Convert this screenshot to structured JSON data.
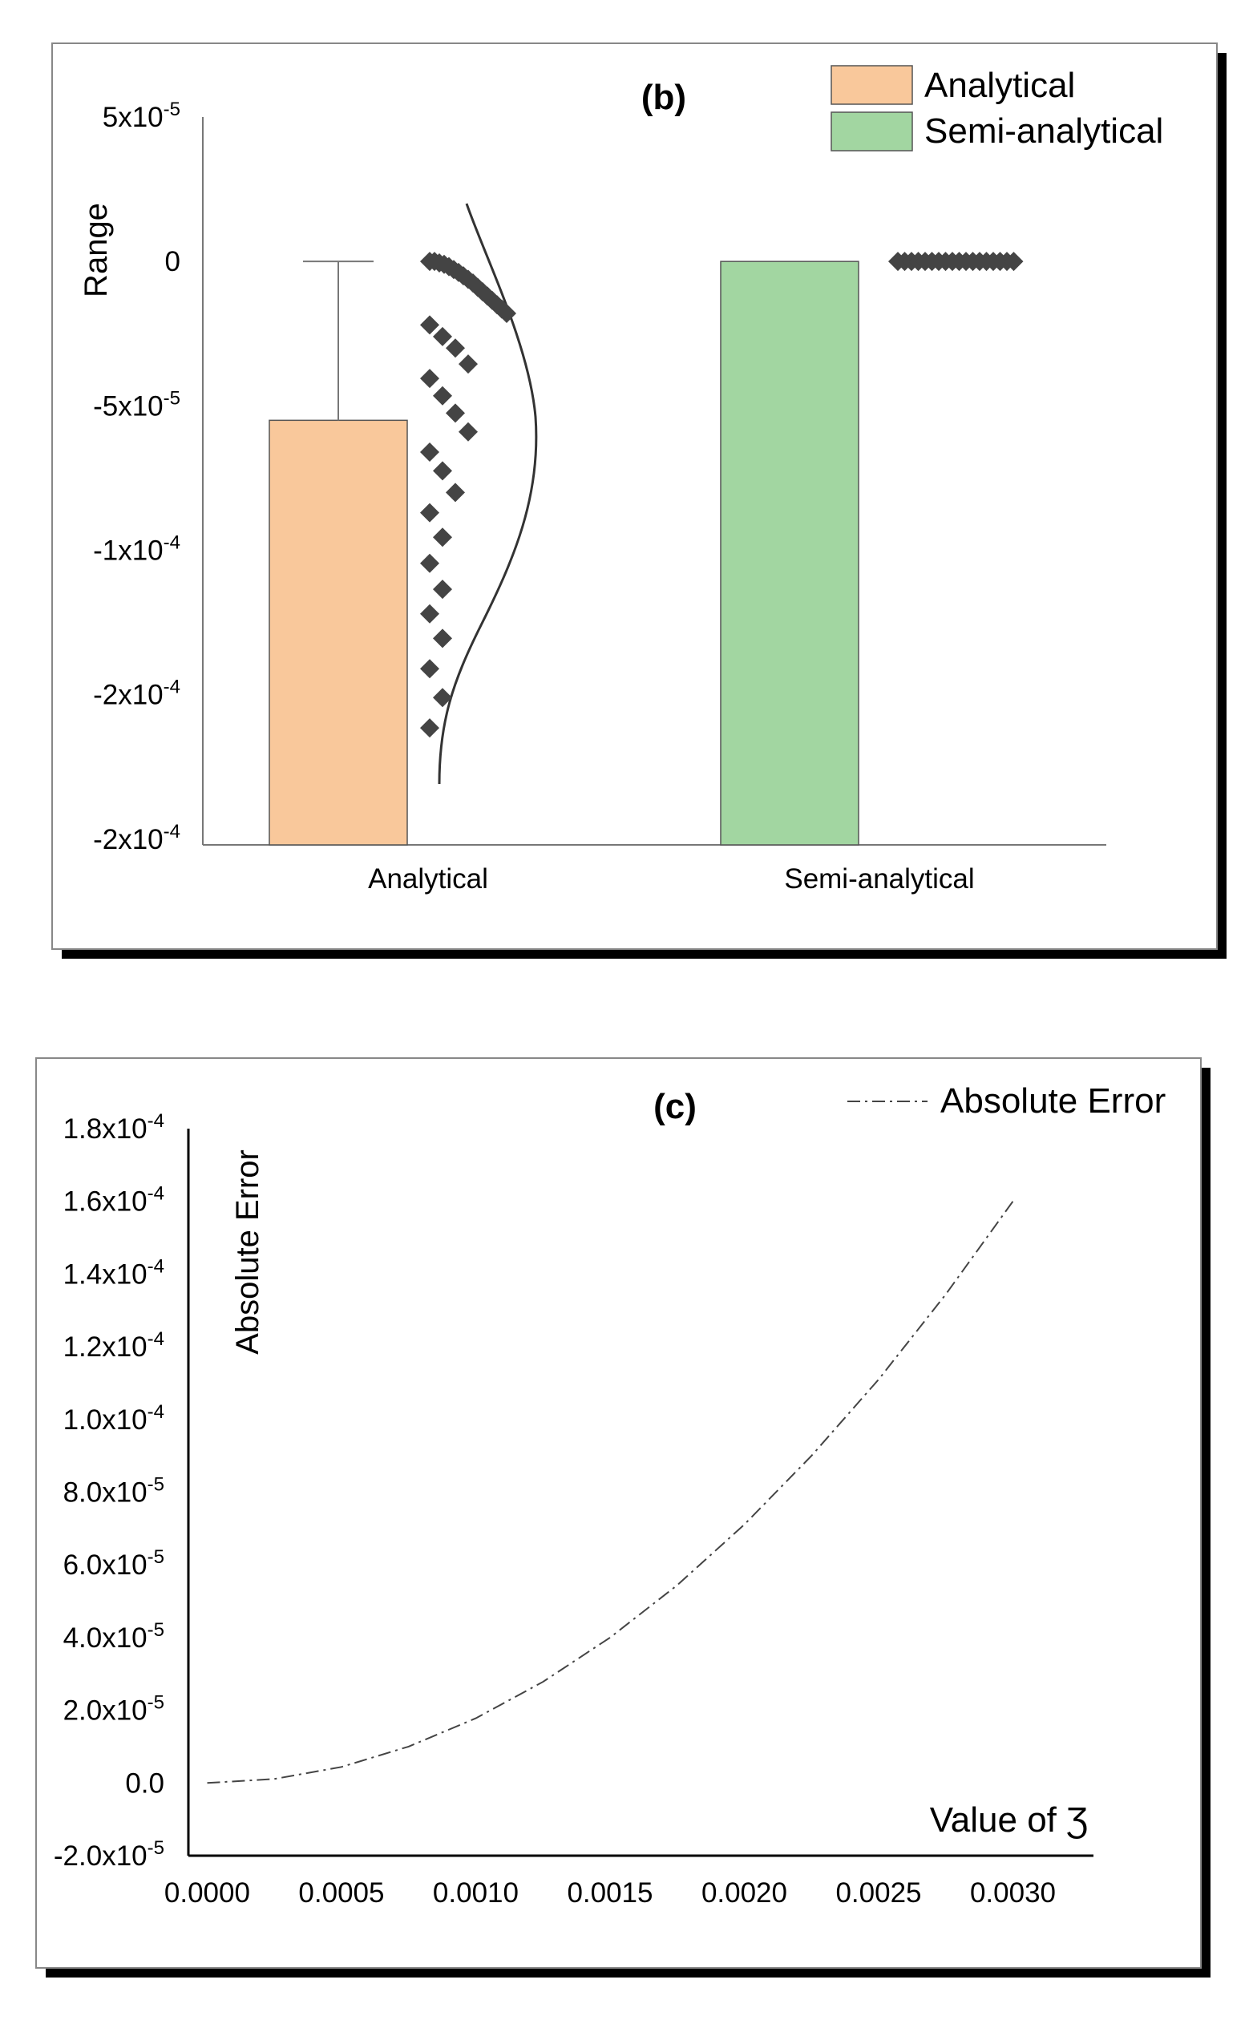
{
  "chart_data": [
    {
      "id": "panel-b",
      "type": "bar",
      "panel_label": "(b)",
      "ylabel": "Range",
      "categories": [
        "Analytical",
        "Semi-analytical"
      ],
      "legend": [
        "Analytical",
        "Semi-analytical"
      ],
      "legend_position": "top-right",
      "colors": [
        "#f9c89b",
        "#a2d6a1"
      ],
      "axis_min": -0.000202,
      "axis_max": 5e-05,
      "y_ticks": [
        {
          "value": 5e-05,
          "base": "5x10",
          "exp": "-5"
        },
        {
          "value": 0.0,
          "base": "0",
          "exp": ""
        },
        {
          "value": -5e-05,
          "base": "-5x10",
          "exp": "-5"
        },
        {
          "value": -0.0001,
          "base": "-1x10",
          "exp": "-4"
        },
        {
          "value": -0.00015,
          "base": "-2x10",
          "exp": "-4"
        },
        {
          "value": -0.0002,
          "base": "-2x10",
          "exp": "-4"
        }
      ],
      "bars": [
        {
          "category": "Analytical",
          "value": -5.5e-05,
          "error_upper": 0.0
        },
        {
          "category": "Semi-analytical",
          "value": 0.0
        }
      ],
      "points_analytical": [
        {
          "offset": -0.6,
          "value": 0.0
        },
        {
          "offset": -0.45,
          "value": 0.0
        },
        {
          "offset": -0.3,
          "value": -5e-07
        },
        {
          "offset": -0.15,
          "value": -1e-06
        },
        {
          "offset": 0.0,
          "value": -1.8e-06
        },
        {
          "offset": 0.15,
          "value": -2.8e-06
        },
        {
          "offset": 0.3,
          "value": -3.8e-06
        },
        {
          "offset": 0.45,
          "value": -5e-06
        },
        {
          "offset": 0.6,
          "value": -6.2e-06
        },
        {
          "offset": 0.75,
          "value": -7.5e-06
        },
        {
          "offset": 0.9,
          "value": -9e-06
        },
        {
          "offset": 1.05,
          "value": -1.05e-05
        },
        {
          "offset": 1.2,
          "value": -1.2e-05
        },
        {
          "offset": 1.35,
          "value": -1.35e-05
        },
        {
          "offset": 1.5,
          "value": -1.5e-05
        },
        {
          "offset": 1.65,
          "value": -1.65e-05
        },
        {
          "offset": 1.8,
          "value": -1.8e-05
        },
        {
          "offset": -0.6,
          "value": -2.2e-05
        },
        {
          "offset": -0.2,
          "value": -2.6e-05
        },
        {
          "offset": 0.2,
          "value": -3e-05
        },
        {
          "offset": 0.6,
          "value": -3.55e-05
        },
        {
          "offset": -0.6,
          "value": -4.05e-05
        },
        {
          "offset": -0.2,
          "value": -4.65e-05
        },
        {
          "offset": 0.2,
          "value": -5.25e-05
        },
        {
          "offset": 0.6,
          "value": -5.9e-05
        },
        {
          "offset": -0.6,
          "value": -6.6e-05
        },
        {
          "offset": -0.2,
          "value": -7.25e-05
        },
        {
          "offset": 0.2,
          "value": -8e-05
        },
        {
          "offset": -0.6,
          "value": -8.7e-05
        },
        {
          "offset": -0.2,
          "value": -9.55e-05
        },
        {
          "offset": -0.6,
          "value": -0.0001045
        },
        {
          "offset": -0.2,
          "value": -0.0001135
        },
        {
          "offset": -0.6,
          "value": -0.000122
        },
        {
          "offset": -0.2,
          "value": -0.0001305
        },
        {
          "offset": -0.6,
          "value": -0.000141
        },
        {
          "offset": -0.2,
          "value": -0.000151
        },
        {
          "offset": -0.6,
          "value": -0.0001615
        }
      ],
      "points_semi_analytical_count": 18,
      "points_semi_analytical_value": 0.0
    },
    {
      "id": "panel-c",
      "type": "line",
      "panel_label": "(c)",
      "ylabel": "Absolute Error",
      "xlabel": "Value of Ʒ",
      "legend": [
        "Absolute Error"
      ],
      "legend_position": "top-right",
      "xlim": [
        -7e-05,
        0.0033
      ],
      "ylim": [
        -2e-05,
        0.00018
      ],
      "x_ticks": [
        "0.0000",
        "0.0005",
        "0.0010",
        "0.0015",
        "0.0020",
        "0.0025",
        "0.0030"
      ],
      "x_tick_values": [
        0.0,
        0.0005,
        0.001,
        0.0015,
        0.002,
        0.0025,
        0.003
      ],
      "y_ticks": [
        {
          "value": 0.00018,
          "base": "1.8x10",
          "exp": "-4"
        },
        {
          "value": 0.00016,
          "base": "1.6x10",
          "exp": "-4"
        },
        {
          "value": 0.00014,
          "base": "1.4x10",
          "exp": "-4"
        },
        {
          "value": 0.00012,
          "base": "1.2x10",
          "exp": "-4"
        },
        {
          "value": 0.0001,
          "base": "1.0x10",
          "exp": "-4"
        },
        {
          "value": 8e-05,
          "base": "8.0x10",
          "exp": "-5"
        },
        {
          "value": 6e-05,
          "base": "6.0x10",
          "exp": "-5"
        },
        {
          "value": 4e-05,
          "base": "4.0x10",
          "exp": "-5"
        },
        {
          "value": 2e-05,
          "base": "2.0x10",
          "exp": "-5"
        },
        {
          "value": 0.0,
          "base": "0.0",
          "exp": ""
        },
        {
          "value": -2e-05,
          "base": "-2.0x10",
          "exp": "-5"
        }
      ],
      "series": [
        {
          "name": "Absolute Error",
          "x": [
            0.0,
            0.00025,
            0.0005,
            0.00075,
            0.001,
            0.00125,
            0.0015,
            0.00175,
            0.002,
            0.00225,
            0.0025,
            0.00275,
            0.003
          ],
          "y": [
            0.0,
            1.1e-06,
            4.4e-06,
            1e-05,
            1.78e-05,
            2.78e-05,
            4e-05,
            5.44e-05,
            7.11e-05,
            9e-05,
            0.000111,
            0.0001344,
            0.00016
          ]
        }
      ]
    }
  ]
}
